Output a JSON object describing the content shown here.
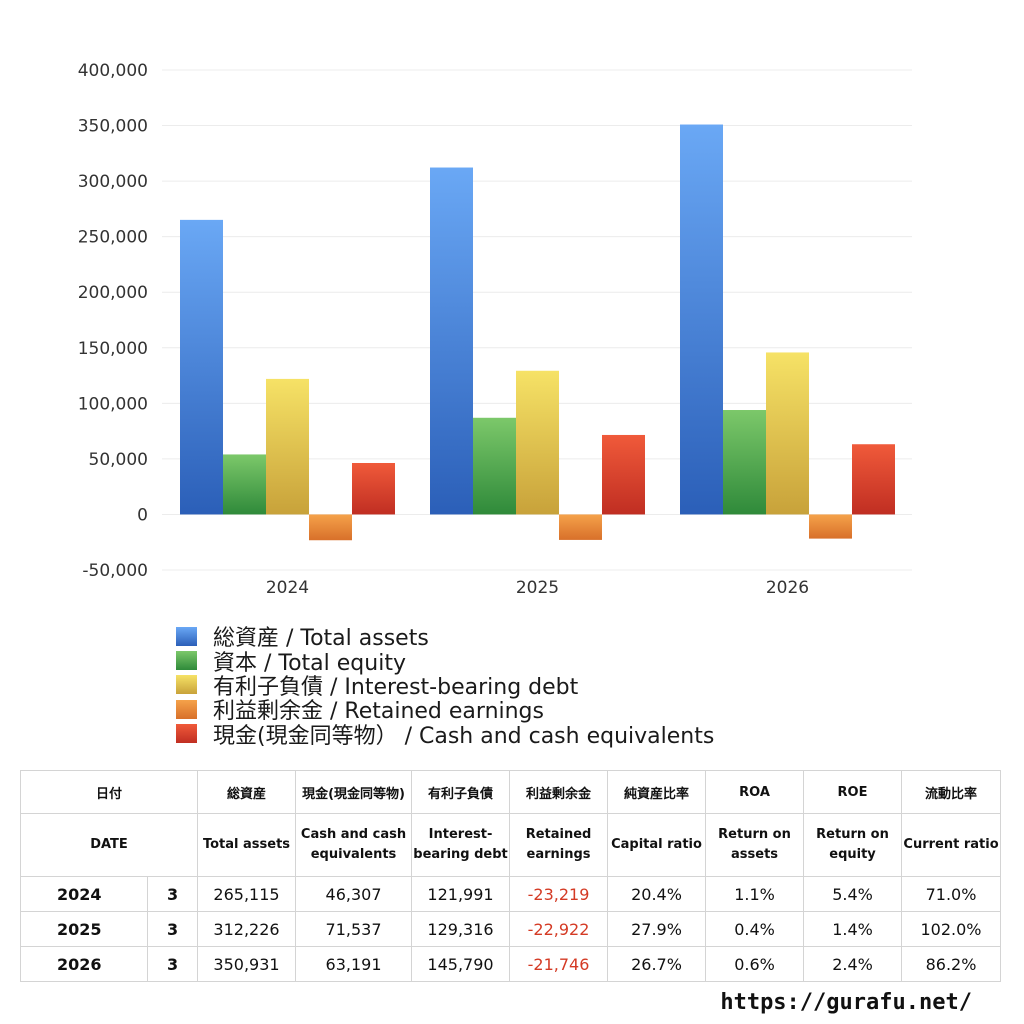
{
  "chart_data": {
    "type": "bar",
    "categories": [
      "2024",
      "2025",
      "2026"
    ],
    "series": [
      {
        "name": "総資産 / Total assets",
        "values": [
          265115,
          312226,
          350931
        ],
        "color_top": "#6aa8f5",
        "color_bottom": "#2b5fb8"
      },
      {
        "name": "資本 / Total equity",
        "values": [
          54000,
          87000,
          94000
        ],
        "color_top": "#7cc86a",
        "color_bottom": "#2f8a3a"
      },
      {
        "name": "有利子負債 / Interest-bearing debt",
        "values": [
          121991,
          129316,
          145790
        ],
        "color_top": "#f6e266",
        "color_bottom": "#c8a23a"
      },
      {
        "name": "利益剰余金 / Retained earnings",
        "values": [
          -23219,
          -22922,
          -21746
        ],
        "color_top": "#f5a24a",
        "color_bottom": "#d8702a"
      },
      {
        "name": "現金(現金同等物） /  Cash and cash equivalents",
        "values": [
          46307,
          71537,
          63191
        ],
        "color_top": "#f05a3a",
        "color_bottom": "#c02e22"
      }
    ],
    "yticks": [
      "400,000",
      "350,000",
      "300,000",
      "250,000",
      "200,000",
      "150,000",
      "100,000",
      "50,000",
      "0",
      "-50,000"
    ],
    "ylim": [
      -50000,
      400000
    ],
    "grid": true,
    "legend_position": "bottom-left"
  },
  "table": {
    "header_ja": [
      "日付",
      "総資産",
      "現金(現金同等物)",
      "有利子負債",
      "利益剰余金",
      "純資産比率",
      "ROA",
      "ROE",
      "流動比率"
    ],
    "header_en": [
      "DATE",
      "Total assets",
      "Cash and cash equivalents",
      "Interest-bearing debt",
      "Retained earnings",
      "Capital ratio",
      "Return on assets",
      "Return on equity",
      "Current ratio"
    ],
    "rows": [
      {
        "year": "2024",
        "month": "3",
        "total_assets": "265,115",
        "cash": "46,307",
        "debt": "121,991",
        "retained": "-23,219",
        "capital_ratio": "20.4%",
        "roa": "1.1%",
        "roe": "5.4%",
        "current_ratio": "71.0%"
      },
      {
        "year": "2025",
        "month": "3",
        "total_assets": "312,226",
        "cash": "71,537",
        "debt": "129,316",
        "retained": "-22,922",
        "capital_ratio": "27.9%",
        "roa": "0.4%",
        "roe": "1.4%",
        "current_ratio": "102.0%"
      },
      {
        "year": "2026",
        "month": "3",
        "total_assets": "350,931",
        "cash": "63,191",
        "debt": "145,790",
        "retained": "-21,746",
        "capital_ratio": "26.7%",
        "roa": "0.6%",
        "roe": "2.4%",
        "current_ratio": "86.2%"
      }
    ]
  },
  "footer": {
    "url": "https://gurafu.net/"
  }
}
